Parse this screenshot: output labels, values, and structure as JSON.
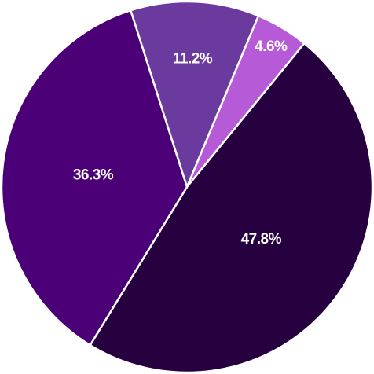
{
  "chart_data": {
    "type": "pie",
    "categories": [
      null,
      null,
      null,
      null
    ],
    "values": [
      11.2,
      4.6,
      47.8,
      36.3
    ],
    "value_labels": [
      "11.2%",
      "4.6%",
      "47.8%",
      "36.3%"
    ],
    "colors": [
      "#6b3a9f",
      "#b65ad8",
      "#26003f",
      "#4b0077"
    ]
  }
}
